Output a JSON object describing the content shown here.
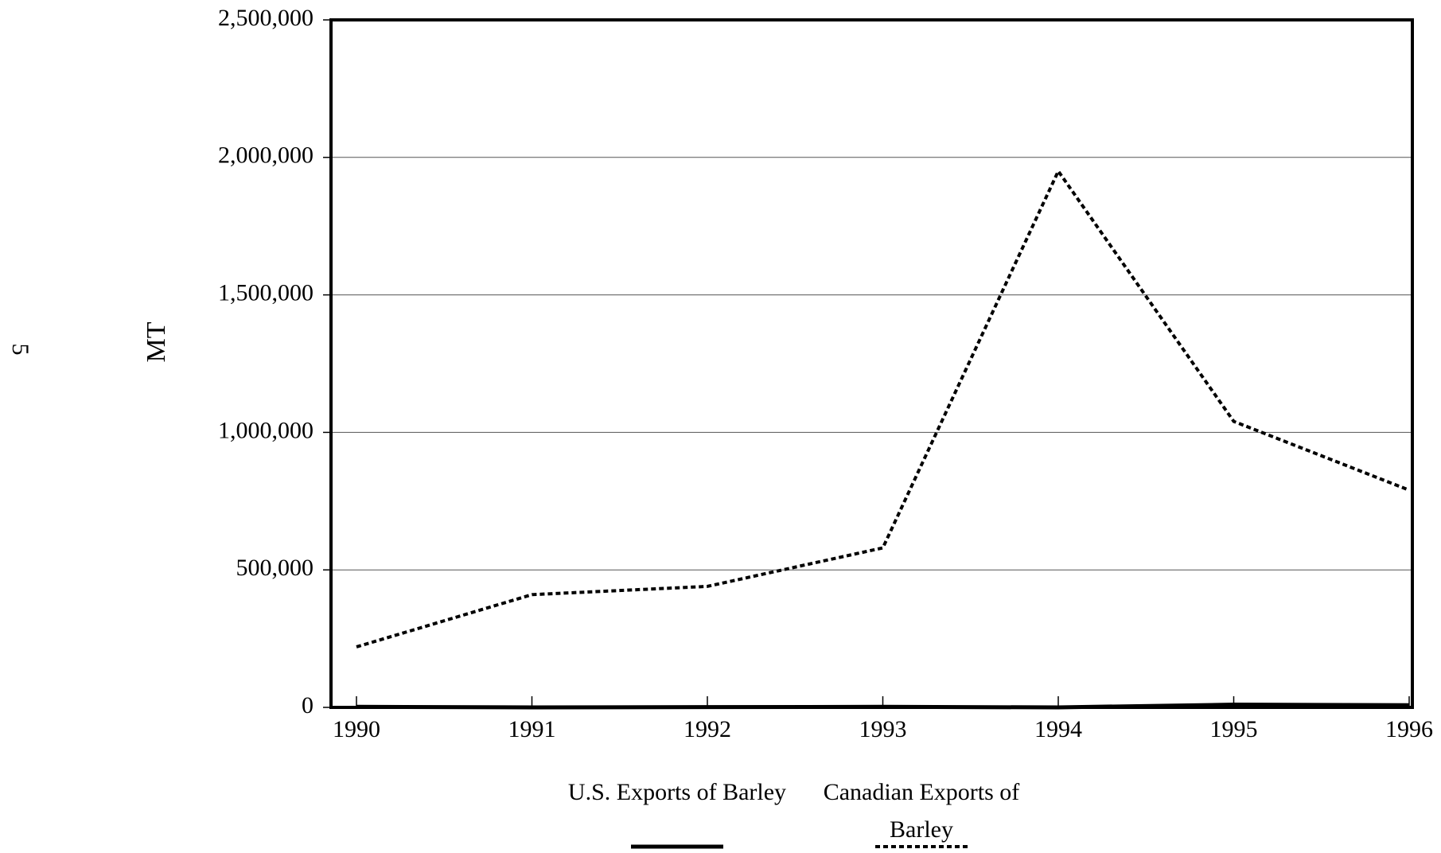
{
  "chart_data": {
    "type": "line",
    "annotation": "5",
    "ylabel": "MT",
    "categories": [
      "1990",
      "1991",
      "1992",
      "1993",
      "1994",
      "1995",
      "1996"
    ],
    "series": [
      {
        "name": "U.S. Exports of Barley",
        "color": "#000000",
        "style": "solid",
        "values": [
          2000,
          0,
          1000,
          2000,
          0,
          10000,
          8000
        ]
      },
      {
        "name": "Canadian Exports of Barley",
        "color": "#000000",
        "style": "dotted",
        "values": [
          220000,
          410000,
          440000,
          580000,
          1950000,
          1040000,
          790000
        ]
      }
    ],
    "ylim": [
      0,
      2500000
    ],
    "yticks": [
      0,
      {
        "value": 500000,
        "label": "500,000"
      },
      {
        "value": 1000000,
        "label": "1,000,000"
      },
      {
        "value": 1500000,
        "label": "1,500,000"
      },
      {
        "value": 2000000,
        "label": "2,000,000"
      },
      {
        "value": 2500000,
        "label": "2,500,000"
      }
    ],
    "grid": true,
    "legend": "bottom"
  }
}
